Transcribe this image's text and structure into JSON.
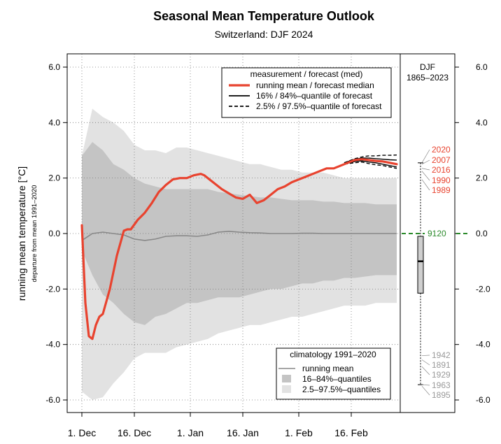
{
  "title": "Seasonal Mean Temperature Outlook",
  "subtitle": "Switzerland: DJF 2024",
  "chart_data": {
    "type": "line",
    "title": "Seasonal Mean Temperature Outlook",
    "subtitle": "Switzerland: DJF 2024",
    "ylabel": "running mean temperature [°C]",
    "ylabel_sub": "departure from mean 1991–2020",
    "ylim": [
      -6.5,
      6.4
    ],
    "y_ticks": [
      -6.0,
      -4.0,
      -2.0,
      0.0,
      2.0,
      4.0,
      6.0
    ],
    "y_tick_labels": [
      "-6.0",
      "-4.0",
      "-2.0",
      "0.0",
      "2.0",
      "4.0",
      "6.0"
    ],
    "x_day_range": [
      0,
      90
    ],
    "x_ticks": [
      0,
      15,
      31,
      46,
      62,
      77
    ],
    "x_tick_labels": [
      "1. Dec",
      "16. Dec",
      "1. Jan",
      "16. Jan",
      "1. Feb",
      "16. Feb"
    ],
    "grid": true,
    "legend_top": {
      "title": "measurement / forecast (med)",
      "entries": [
        {
          "label": "running mean / forecast median",
          "style": "solid",
          "color": "#e8432f"
        },
        {
          "label": "16% / 84%–quantile of forecast",
          "style": "solid",
          "color": "#000000"
        },
        {
          "label": "2.5% / 97.5%–quantile of forecast",
          "style": "dashed",
          "color": "#000000"
        }
      ],
      "position": "top-right"
    },
    "legend_bottom": {
      "title": "climatology 1991–2020",
      "entries": [
        {
          "label": "running mean",
          "kind": "line",
          "color": "#888888"
        },
        {
          "label": "16–84%–quantiles",
          "kind": "box",
          "color": "#c4c4c4"
        },
        {
          "label": "2.5–97.5%–quantiles",
          "kind": "box",
          "color": "#e2e2e2"
        }
      ],
      "position": "bottom-right"
    },
    "series": [
      {
        "name": "running mean / forecast median",
        "color": "#e8432f",
        "x": [
          0,
          1,
          2,
          3,
          4,
          5,
          6,
          8,
          10,
          12,
          13,
          14,
          16,
          18,
          20,
          22,
          24,
          26,
          28,
          30,
          32,
          34,
          35,
          36,
          38,
          40,
          42,
          44,
          46,
          48,
          49,
          50,
          51,
          52,
          54,
          56,
          58,
          60,
          62,
          64,
          66,
          68,
          70,
          72,
          74,
          76,
          78,
          80,
          82,
          84,
          86,
          88,
          90
        ],
        "y": [
          0.3,
          -2.5,
          -3.7,
          -3.8,
          -3.3,
          -3.0,
          -2.9,
          -2.0,
          -0.8,
          0.1,
          0.15,
          0.15,
          0.5,
          0.75,
          1.1,
          1.5,
          1.75,
          1.95,
          2.0,
          2.0,
          2.1,
          2.15,
          2.1,
          2.0,
          1.8,
          1.6,
          1.45,
          1.3,
          1.25,
          1.4,
          1.25,
          1.1,
          1.15,
          1.2,
          1.4,
          1.6,
          1.7,
          1.85,
          1.95,
          2.05,
          2.15,
          2.25,
          2.35,
          2.35,
          2.45,
          2.55,
          2.65,
          2.68,
          2.65,
          2.62,
          2.6,
          2.55,
          2.5
        ]
      }
    ],
    "forecast_quantiles": {
      "x": [
        75,
        78,
        80,
        82,
        84,
        86,
        88,
        90
      ],
      "q16": [
        2.5,
        2.6,
        2.62,
        2.58,
        2.55,
        2.5,
        2.45,
        2.4
      ],
      "q84": [
        2.55,
        2.68,
        2.72,
        2.72,
        2.7,
        2.68,
        2.66,
        2.65
      ],
      "q02_5": [
        2.5,
        2.55,
        2.58,
        2.52,
        2.48,
        2.45,
        2.4,
        2.35
      ],
      "q97_5": [
        2.55,
        2.7,
        2.76,
        2.8,
        2.8,
        2.82,
        2.82,
        2.83
      ]
    },
    "climatology": {
      "x": [
        0,
        3,
        6,
        9,
        12,
        15,
        18,
        21,
        24,
        27,
        30,
        33,
        36,
        39,
        42,
        45,
        48,
        51,
        54,
        57,
        60,
        63,
        66,
        69,
        72,
        75,
        78,
        81,
        84,
        87,
        90
      ],
      "mean": [
        -0.25,
        0.0,
        0.05,
        0.0,
        -0.05,
        -0.2,
        -0.25,
        -0.2,
        -0.1,
        -0.08,
        -0.08,
        -0.1,
        -0.05,
        0.05,
        0.08,
        0.05,
        0.03,
        0.02,
        0.0,
        0.0,
        0.0,
        0.01,
        0.01,
        0.0,
        0.0,
        0.0,
        0.0,
        0.0,
        0.0,
        0.0,
        0.0
      ],
      "q16": [
        -0.6,
        -1.5,
        -2.2,
        -2.5,
        -2.9,
        -3.2,
        -3.3,
        -3.0,
        -2.9,
        -2.7,
        -2.5,
        -2.5,
        -2.4,
        -2.3,
        -2.3,
        -2.3,
        -2.2,
        -2.1,
        -2.0,
        -2.0,
        -1.9,
        -1.8,
        -1.8,
        -1.7,
        -1.7,
        -1.6,
        -1.6,
        -1.55,
        -1.5,
        -1.5,
        -1.5
      ],
      "q84": [
        2.8,
        3.3,
        3.0,
        2.5,
        2.3,
        2.0,
        1.8,
        1.7,
        1.6,
        1.6,
        1.6,
        1.6,
        1.6,
        1.5,
        1.45,
        1.4,
        1.35,
        1.3,
        1.3,
        1.25,
        1.2,
        1.2,
        1.2,
        1.15,
        1.15,
        1.1,
        1.1,
        1.1,
        1.05,
        1.05,
        1.05
      ],
      "q02_5": [
        -5.7,
        -6.0,
        -5.9,
        -5.4,
        -5.0,
        -4.5,
        -4.3,
        -4.3,
        -4.3,
        -4.1,
        -4.0,
        -3.9,
        -3.8,
        -3.6,
        -3.5,
        -3.4,
        -3.3,
        -3.3,
        -3.2,
        -3.1,
        -3.0,
        -3.0,
        -2.9,
        -2.8,
        -2.7,
        -2.6,
        -2.6,
        -2.6,
        -2.5,
        -2.5,
        -2.5
      ],
      "q97_5": [
        2.8,
        4.5,
        4.2,
        4.0,
        3.7,
        3.2,
        3.0,
        3.0,
        2.9,
        3.1,
        3.1,
        3.0,
        2.9,
        2.8,
        2.7,
        2.6,
        2.5,
        2.5,
        2.4,
        2.3,
        2.3,
        2.2,
        2.2,
        2.2,
        2.1,
        2.0,
        2.0,
        2.0,
        2.0,
        2.0,
        2.0
      ]
    },
    "side_panel": {
      "title": "DJF",
      "period": "1865–2023",
      "box": {
        "median": -1.0,
        "q25": -2.15,
        "q75": -0.1,
        "whisker_low": -5.45,
        "whisker_high": 2.55
      },
      "current": {
        "value": 0.0,
        "label": "9120",
        "color": "#2b8a2b"
      },
      "warm_years": [
        {
          "year": "2020",
          "value": 2.55
        },
        {
          "year": "2007",
          "value": 2.5
        },
        {
          "year": "2016",
          "value": 2.35
        },
        {
          "year": "1990",
          "value": 2.25
        },
        {
          "year": "1989",
          "value": 1.95
        }
      ],
      "cold_years": [
        {
          "year": "1942",
          "value": -4.4
        },
        {
          "year": "1891",
          "value": -4.55
        },
        {
          "year": "1929",
          "value": -4.8
        },
        {
          "year": "1963",
          "value": -5.45
        },
        {
          "year": "1895",
          "value": -5.5
        }
      ],
      "warm_color": "#e8432f",
      "cold_color": "#999999"
    }
  }
}
